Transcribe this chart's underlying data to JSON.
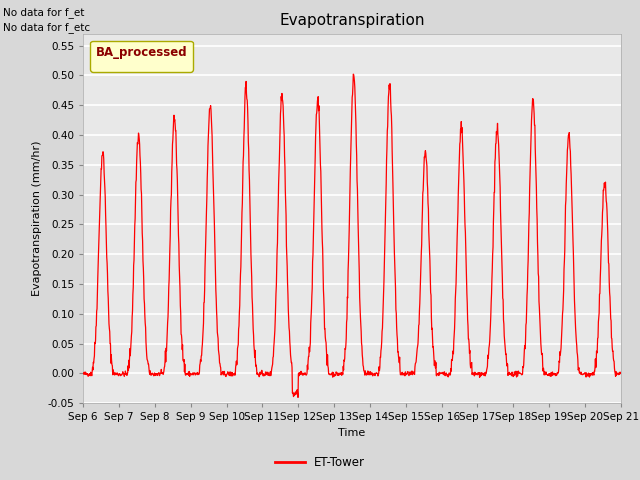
{
  "title": "Evapotranspiration",
  "ylabel": "Evapotranspiration (mm/hr)",
  "xlabel": "Time",
  "ylim": [
    -0.05,
    0.57
  ],
  "yticks": [
    -0.05,
    0.0,
    0.05,
    0.1,
    0.15,
    0.2,
    0.25,
    0.3,
    0.35,
    0.4,
    0.45,
    0.5,
    0.55
  ],
  "x_tick_labels": [
    "Sep 6",
    "Sep 7",
    "Sep 8",
    "Sep 9",
    "Sep 10",
    "Sep 11",
    "Sep 12",
    "Sep 13",
    "Sep 14",
    "Sep 15",
    "Sep 16",
    "Sep 17",
    "Sep 18",
    "Sep 19",
    "Sep 20",
    "Sep 21"
  ],
  "line_color": "red",
  "line_label": "ET-Tower",
  "legend_label": "BA_processed",
  "note_line1": "No data for f_et",
  "note_line2": "No data for f_etc",
  "fig_bg_color": "#d8d8d8",
  "plot_bg_color": "#e8e8e8",
  "grid_color": "white",
  "title_fontsize": 11,
  "label_fontsize": 8,
  "tick_fontsize": 7.5
}
